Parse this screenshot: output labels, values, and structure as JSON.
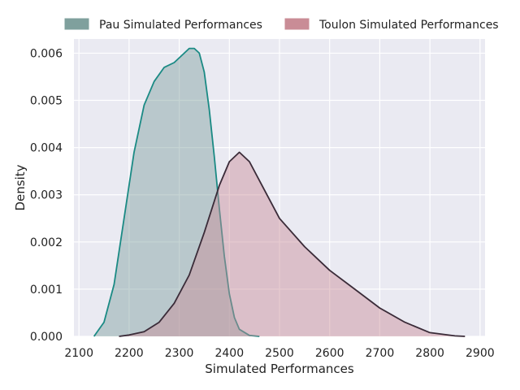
{
  "chart_data": {
    "type": "area",
    "title": "",
    "xlabel": "Simulated Performances",
    "ylabel": "Density",
    "xlim": [
      2090,
      2910
    ],
    "ylim": [
      0,
      0.0063
    ],
    "x_ticks": [
      2100,
      2200,
      2300,
      2400,
      2500,
      2600,
      2700,
      2800,
      2900
    ],
    "x_tick_labels": [
      "2100",
      "2200",
      "2300",
      "2400",
      "2500",
      "2600",
      "2700",
      "2800",
      "2900"
    ],
    "y_ticks": [
      0,
      0.001,
      0.002,
      0.003,
      0.004,
      0.005,
      0.006
    ],
    "y_tick_labels": [
      "0.000",
      "0.001",
      "0.002",
      "0.003",
      "0.004",
      "0.005",
      "0.006"
    ],
    "grid": true,
    "legend_position": "top",
    "background_color": "#eaeaf2",
    "series": [
      {
        "name": "Pau Simulated Performances",
        "line_color": "#1a8a84",
        "fill_color": "#7fa09d",
        "fill_opacity": 0.45,
        "x": [
          2130,
          2150,
          2170,
          2190,
          2210,
          2230,
          2250,
          2270,
          2290,
          2310,
          2320,
          2330,
          2340,
          2350,
          2360,
          2370,
          2380,
          2390,
          2400,
          2410,
          2420,
          2440,
          2460
        ],
        "y": [
          0.0,
          0.0003,
          0.0011,
          0.0025,
          0.0039,
          0.0049,
          0.0054,
          0.0057,
          0.0058,
          0.006,
          0.0061,
          0.0061,
          0.006,
          0.0056,
          0.0048,
          0.0038,
          0.0027,
          0.0017,
          0.0009,
          0.0004,
          0.00015,
          2e-05,
          0.0
        ]
      },
      {
        "name": "Toulon Simulated Performances",
        "line_color": "#3a2b38",
        "fill_color": "#c98c96",
        "fill_opacity": 0.45,
        "x": [
          2180,
          2200,
          2230,
          2260,
          2290,
          2320,
          2350,
          2380,
          2400,
          2420,
          2440,
          2470,
          2500,
          2550,
          2600,
          2650,
          2700,
          2750,
          2800,
          2850,
          2870
        ],
        "y": [
          0.0,
          3e-05,
          0.0001,
          0.0003,
          0.0007,
          0.0013,
          0.0022,
          0.0032,
          0.0037,
          0.0039,
          0.0037,
          0.0031,
          0.0025,
          0.0019,
          0.0014,
          0.001,
          0.0006,
          0.0003,
          8e-05,
          1e-05,
          0.0
        ]
      }
    ]
  }
}
